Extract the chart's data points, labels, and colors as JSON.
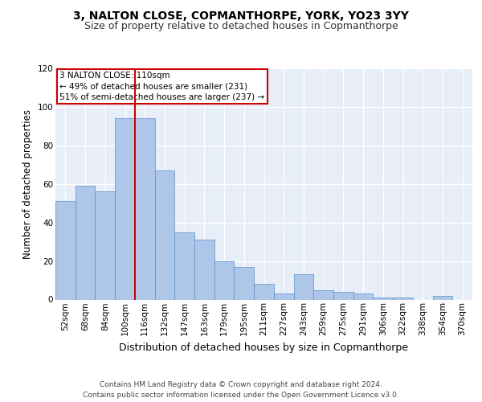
{
  "title": "3, NALTON CLOSE, COPMANTHORPE, YORK, YO23 3YY",
  "subtitle": "Size of property relative to detached houses in Copmanthorpe",
  "xlabel": "Distribution of detached houses by size in Copmanthorpe",
  "ylabel": "Number of detached properties",
  "categories": [
    "52sqm",
    "68sqm",
    "84sqm",
    "100sqm",
    "116sqm",
    "132sqm",
    "147sqm",
    "163sqm",
    "179sqm",
    "195sqm",
    "211sqm",
    "227sqm",
    "243sqm",
    "259sqm",
    "275sqm",
    "291sqm",
    "306sqm",
    "322sqm",
    "338sqm",
    "354sqm",
    "370sqm"
  ],
  "values": [
    51,
    59,
    56,
    94,
    94,
    67,
    35,
    31,
    20,
    17,
    8,
    3,
    13,
    5,
    4,
    3,
    1,
    1,
    0,
    2,
    0
  ],
  "bar_color": "#aec6e8",
  "bar_edge_color": "#5b8fc9",
  "background_color": "#e8eef8",
  "grid_color": "#ffffff",
  "vline_color": "#cc0000",
  "annotation_text": "3 NALTON CLOSE: 110sqm\n← 49% of detached houses are smaller (231)\n51% of semi-detached houses are larger (237) →",
  "annotation_box_color": "#ffffff",
  "annotation_box_edge": "#cc0000",
  "ylim": [
    0,
    120
  ],
  "yticks": [
    0,
    20,
    40,
    60,
    80,
    100,
    120
  ],
  "footer": "Contains HM Land Registry data © Crown copyright and database right 2024.\nContains public sector information licensed under the Open Government Licence v3.0.",
  "title_fontsize": 10,
  "subtitle_fontsize": 9,
  "xlabel_fontsize": 9,
  "ylabel_fontsize": 8.5,
  "tick_fontsize": 7.5,
  "footer_fontsize": 6.5
}
